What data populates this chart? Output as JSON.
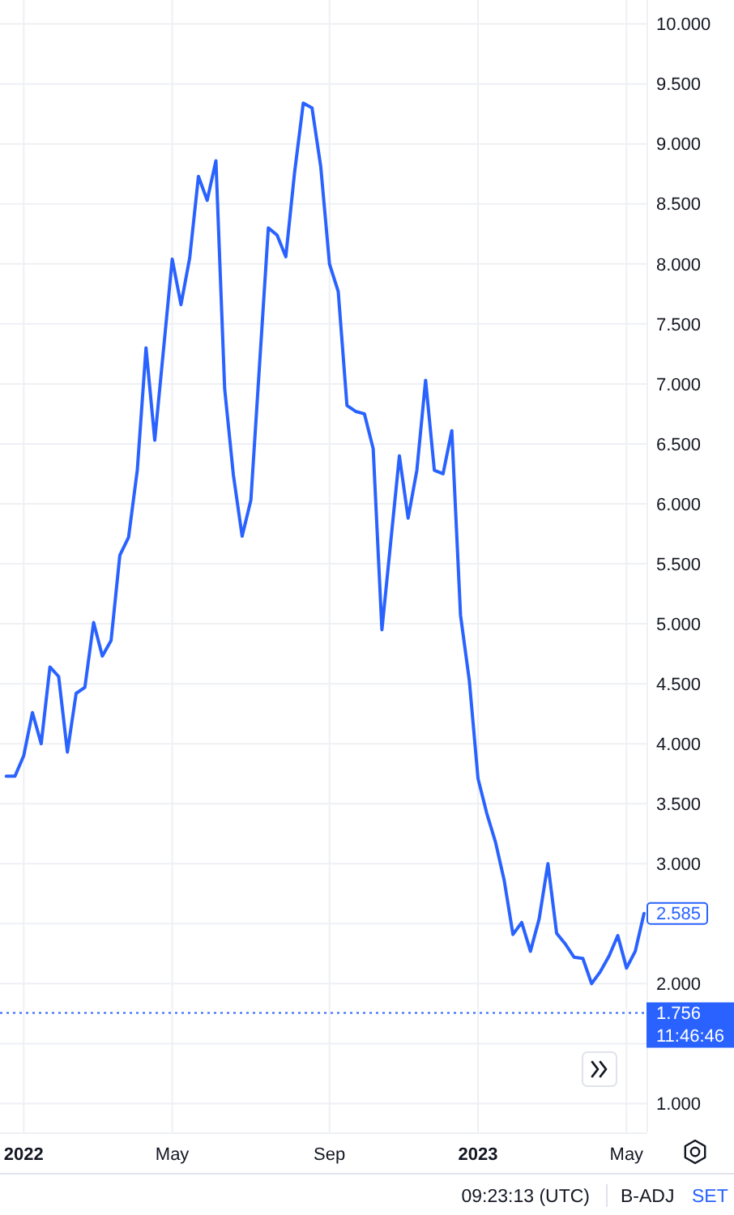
{
  "chart_data": {
    "type": "line",
    "x": [
      "2021-12-20",
      "2021-12-27",
      "2022-01-03",
      "2022-01-10",
      "2022-01-17",
      "2022-01-24",
      "2022-01-31",
      "2022-02-07",
      "2022-02-14",
      "2022-02-21",
      "2022-02-28",
      "2022-03-07",
      "2022-03-14",
      "2022-03-21",
      "2022-03-28",
      "2022-04-04",
      "2022-04-11",
      "2022-04-18",
      "2022-05-02",
      "2022-05-09",
      "2022-05-16",
      "2022-05-23",
      "2022-05-30",
      "2022-06-06",
      "2022-06-13",
      "2022-06-20",
      "2022-06-27",
      "2022-07-04",
      "2022-07-18",
      "2022-07-25",
      "2022-08-01",
      "2022-08-08",
      "2022-08-15",
      "2022-08-22",
      "2022-08-29",
      "2022-09-05",
      "2022-09-12",
      "2022-09-19",
      "2022-09-26",
      "2022-10-03",
      "2022-10-10",
      "2022-10-17",
      "2022-10-31",
      "2022-11-07",
      "2022-11-14",
      "2022-11-21",
      "2022-11-28",
      "2022-12-05",
      "2022-12-12",
      "2022-12-19",
      "2022-12-26",
      "2023-01-02",
      "2023-01-09",
      "2023-01-16",
      "2023-01-23",
      "2023-01-30",
      "2023-02-06",
      "2023-02-13",
      "2023-02-20",
      "2023-02-27",
      "2023-03-06",
      "2023-03-13",
      "2023-03-20",
      "2023-03-27",
      "2023-04-03",
      "2023-04-10",
      "2023-04-17",
      "2023-04-24",
      "2023-05-01",
      "2023-05-08",
      "2023-05-15"
    ],
    "series": [
      {
        "color": "#2962ff",
        "values": [
          3.73,
          3.73,
          3.9,
          4.26,
          4.0,
          4.64,
          4.56,
          3.93,
          4.42,
          4.47,
          5.01,
          4.73,
          4.86,
          5.57,
          5.72,
          6.28,
          7.3,
          6.53,
          8.04,
          7.66,
          8.05,
          8.73,
          8.53,
          8.86,
          6.96,
          6.24,
          5.73,
          6.03,
          8.3,
          8.24,
          8.06,
          8.76,
          9.34,
          9.3,
          8.81,
          8.0,
          7.77,
          6.82,
          6.77,
          6.75,
          6.46,
          4.95,
          6.4,
          5.88,
          6.28,
          7.03,
          6.28,
          6.25,
          6.61,
          5.07,
          4.53,
          3.71,
          3.42,
          3.18,
          2.86,
          2.41,
          2.51,
          2.27,
          2.54,
          3.0,
          2.42,
          2.33,
          2.22,
          2.21,
          2.0,
          2.1,
          2.23,
          2.4,
          2.13,
          2.27,
          2.585
        ],
        "value_labels": [
          null,
          null,
          null,
          null,
          null,
          null,
          null,
          null,
          null,
          null,
          null,
          null,
          null,
          null,
          null,
          null,
          null,
          null,
          null,
          null,
          null,
          null,
          null,
          null,
          null,
          null,
          null,
          null,
          null,
          null,
          null,
          null,
          null,
          null,
          null,
          null,
          null,
          null,
          null,
          null,
          null,
          null,
          null,
          null,
          null,
          null,
          null,
          null,
          null,
          null,
          null,
          null,
          null,
          null,
          null,
          null,
          null,
          null,
          null,
          null,
          null,
          null,
          null,
          null,
          null,
          null,
          null,
          null,
          null,
          null,
          "2.585"
        ]
      }
    ],
    "xlim": [
      "2021-12-15",
      "2023-05-17"
    ],
    "xticks": [
      {
        "value": "2022-01-03",
        "label": "2022"
      },
      {
        "value": "2022-05-02",
        "label": "May"
      },
      {
        "value": "2022-09-05",
        "label": "Sep"
      },
      {
        "value": "2023-01-02",
        "label": "2023"
      },
      {
        "value": "2023-05-01",
        "label": "May"
      }
    ],
    "ylim": [
      0.76,
      10.2
    ],
    "yticks": [
      {
        "value": 1,
        "label": "1.000"
      },
      {
        "value": 1.5,
        "label": null
      },
      {
        "value": 2,
        "label": "2.000"
      },
      {
        "value": 2.5,
        "label": null
      },
      {
        "value": 3,
        "label": "3.000"
      },
      {
        "value": 3.5,
        "label": "3.500"
      },
      {
        "value": 4,
        "label": "4.000"
      },
      {
        "value": 4.5,
        "label": "4.500"
      },
      {
        "value": 5,
        "label": "5.000"
      },
      {
        "value": 5.5,
        "label": "5.500"
      },
      {
        "value": 6,
        "label": "6.000"
      },
      {
        "value": 6.5,
        "label": "6.500"
      },
      {
        "value": 7,
        "label": "7.000"
      },
      {
        "value": 7.5,
        "label": "7.500"
      },
      {
        "value": 8,
        "label": "8.000"
      },
      {
        "value": 8.5,
        "label": "8.500"
      },
      {
        "value": 9,
        "label": "9.000"
      },
      {
        "value": 9.5,
        "label": "9.500"
      },
      {
        "value": 10,
        "label": "10.000"
      }
    ],
    "grid": true,
    "ref_lines": [
      {
        "axis": "y",
        "value": 1.756,
        "label": "1.756",
        "color": "#2962ff",
        "line_style": "dotted"
      }
    ],
    "annotations": [
      "11:46:46",
      "09:23:13 (UTC)",
      "B-ADJ",
      "SET"
    ]
  }
}
